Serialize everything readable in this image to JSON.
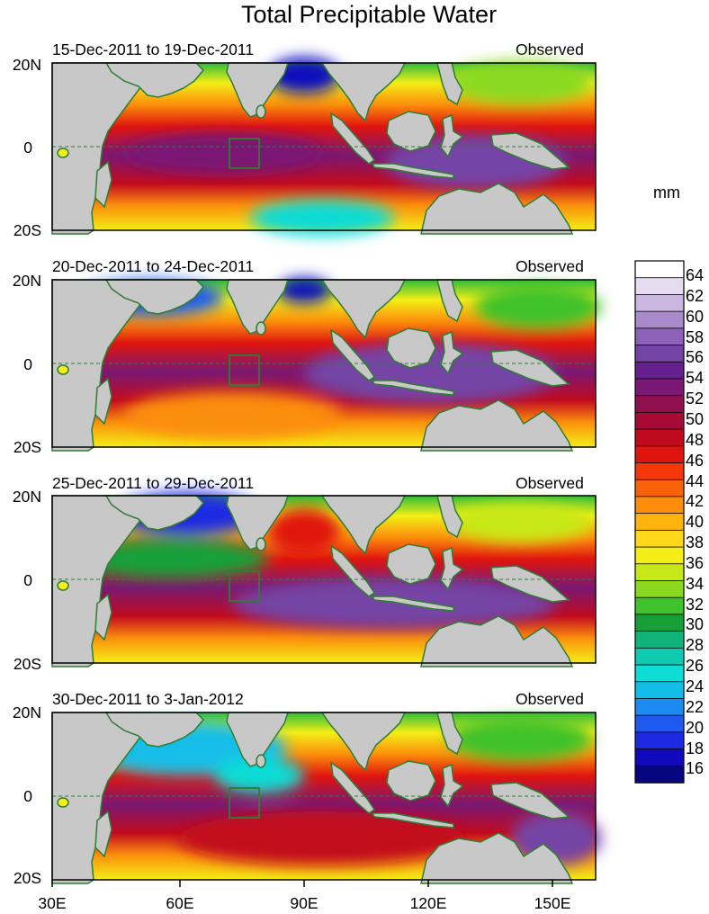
{
  "title": "Total Precipitable Water",
  "unit": "mm",
  "panels": [
    {
      "date_range": "15-Dec-2011 to 19-Dec-2011",
      "type": "Observed"
    },
    {
      "date_range": "20-Dec-2011 to 24-Dec-2011",
      "type": "Observed"
    },
    {
      "date_range": "25-Dec-2011 to 29-Dec-2011",
      "type": "Observed"
    },
    {
      "date_range": "30-Dec-2011 to 3-Jan-2012",
      "type": "Observed"
    }
  ],
  "lat_labels": [
    "20N",
    "0",
    "20S"
  ],
  "lon_labels": [
    "30E",
    "60E",
    "90E",
    "120E",
    "150E"
  ],
  "colorbar": {
    "labels": [
      "64",
      "62",
      "60",
      "58",
      "56",
      "54",
      "52",
      "50",
      "48",
      "46",
      "44",
      "42",
      "40",
      "38",
      "36",
      "34",
      "32",
      "30",
      "28",
      "26",
      "24",
      "22",
      "20",
      "18",
      "16"
    ],
    "colors": [
      "#ffffff",
      "#e6dcef",
      "#cbb7e0",
      "#a98acb",
      "#8a63b8",
      "#7444a5",
      "#651f8e",
      "#7a1873",
      "#900f4f",
      "#a80a36",
      "#c20a1e",
      "#e0140f",
      "#f5380a",
      "#fa620a",
      "#fc8e0c",
      "#feb30e",
      "#ffd81c",
      "#f4ee16",
      "#c7e818",
      "#8ad920",
      "#3fc22c",
      "#17a03a",
      "#12b37b",
      "#0fcab0",
      "#10dcd6",
      "#12bde8",
      "#1b8bf3",
      "#1f59f0",
      "#1d2ae2",
      "#1109be",
      "#07057f"
    ]
  }
}
